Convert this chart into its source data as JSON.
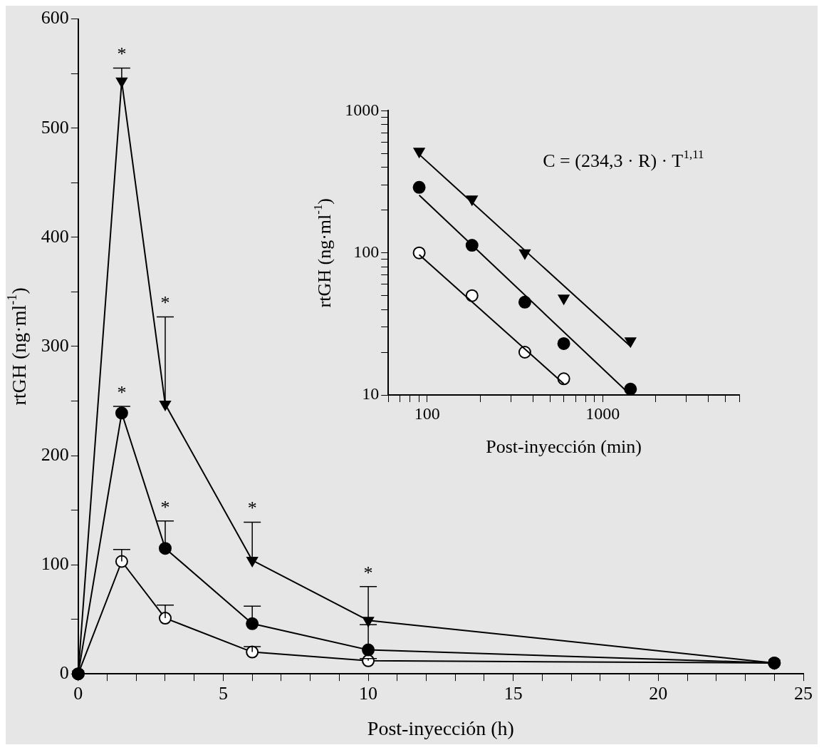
{
  "chart_data": [
    {
      "type": "line",
      "xlabel": "Post-inyección (h)",
      "ylabel": "rtGH (ng·ml$^{-1}$)",
      "xlim": [
        0,
        25
      ],
      "ylim": [
        0,
        600
      ],
      "xticks": [
        0,
        {
          "value": 1,
          "label": null
        },
        {
          "value": 2,
          "label": null
        },
        {
          "value": 3,
          "label": null
        },
        {
          "value": 4,
          "label": null
        },
        5,
        {
          "value": 6,
          "label": null
        },
        {
          "value": 7,
          "label": null
        },
        {
          "value": 8,
          "label": null
        },
        {
          "value": 9,
          "label": null
        },
        10,
        {
          "value": 11,
          "label": null
        },
        {
          "value": 12,
          "label": null
        },
        {
          "value": 13,
          "label": null
        },
        {
          "value": 14,
          "label": null
        },
        15,
        {
          "value": 16,
          "label": null
        },
        {
          "value": 17,
          "label": null
        },
        {
          "value": 18,
          "label": null
        },
        {
          "value": 19,
          "label": null
        },
        20,
        {
          "value": 21,
          "label": null
        },
        {
          "value": 22,
          "label": null
        },
        {
          "value": 23,
          "label": null
        },
        {
          "value": 24,
          "label": null
        },
        25
      ],
      "yticks": [
        0,
        {
          "value": 50,
          "label": null
        },
        100,
        {
          "value": 150,
          "label": null
        },
        200,
        {
          "value": 250,
          "label": null
        },
        300,
        {
          "value": 350,
          "label": null
        },
        400,
        {
          "value": 450,
          "label": null
        },
        500,
        {
          "value": 550,
          "label": null
        },
        600
      ],
      "grid": false,
      "legend": false,
      "series": [
        {
          "color": "#000000",
          "colors": [
            "#ffffff",
            "#ffffff",
            "#ffffff",
            "#ffffff",
            "#ffffff",
            "#ffffff"
          ],
          "marker": "circle",
          "x": [
            0,
            1.5,
            3,
            6,
            10,
            24
          ],
          "values": [
            0,
            103,
            51,
            20,
            12,
            10
          ],
          "errors": [
            null,
            [
              103,
              114
            ],
            [
              51,
              63
            ],
            [
              20,
              25
            ],
            [
              12,
              14
            ],
            null
          ]
        },
        {
          "color": "#000000",
          "marker": "circle",
          "x": [
            0,
            1.5,
            3,
            6,
            10,
            24
          ],
          "values": [
            0,
            239,
            115,
            46,
            22,
            10
          ],
          "errors": [
            null,
            [
              239,
              245
            ],
            [
              115,
              140
            ],
            [
              46,
              62
            ],
            [
              22,
              45
            ],
            null
          ]
        },
        {
          "color": "#000000",
          "marker": "triangle",
          "x": [
            0,
            1.5,
            3,
            6,
            10,
            24
          ],
          "values": [
            0,
            543,
            247,
            104,
            49,
            10
          ],
          "errors": [
            null,
            [
              543,
              555
            ],
            [
              247,
              327
            ],
            [
              104,
              139
            ],
            [
              49,
              80
            ],
            null
          ]
        }
      ],
      "annotations": [
        {
          "text": "*",
          "x": 1.5,
          "y": 555
        },
        {
          "text": "*",
          "x": 3,
          "y": 327
        },
        {
          "text": "*",
          "x": 6,
          "y": 139
        },
        {
          "text": "*",
          "x": 10,
          "y": 80
        },
        {
          "text": "*",
          "x": 1.5,
          "y": 245
        },
        {
          "text": "*",
          "x": 3,
          "y": 140
        }
      ]
    },
    {
      "type": "scatter",
      "xlabel": "Post-inyección (min)",
      "ylabel": "rtGH (ng·ml$^{-1}$)",
      "log": "xy",
      "xlim": [
        60,
        6000
      ],
      "ylim": [
        10,
        1000
      ],
      "xticks": [
        {
          "value": 60,
          "label": null
        },
        {
          "value": 70,
          "label": null
        },
        {
          "value": 80,
          "label": null
        },
        {
          "value": 90,
          "label": null
        },
        100,
        {
          "value": 200,
          "label": null
        },
        {
          "value": 300,
          "label": null
        },
        {
          "value": 400,
          "label": null
        },
        {
          "value": 500,
          "label": null
        },
        {
          "value": 600,
          "label": null
        },
        {
          "value": 700,
          "label": null
        },
        {
          "value": 800,
          "label": null
        },
        {
          "value": 900,
          "label": null
        },
        1000,
        {
          "value": 2000,
          "label": null
        },
        {
          "value": 3000,
          "label": null
        },
        {
          "value": 4000,
          "label": null
        },
        {
          "value": 5000,
          "label": null
        },
        {
          "value": 6000,
          "label": null
        }
      ],
      "yticks": [
        10,
        {
          "value": 20,
          "label": null
        },
        {
          "value": 30,
          "label": null
        },
        {
          "value": 40,
          "label": null
        },
        {
          "value": 50,
          "label": null
        },
        {
          "value": 60,
          "label": null
        },
        {
          "value": 70,
          "label": null
        },
        {
          "value": 80,
          "label": null
        },
        {
          "value": 90,
          "label": null
        },
        100,
        {
          "value": 200,
          "label": null
        },
        {
          "value": 300,
          "label": null
        },
        {
          "value": 400,
          "label": null
        },
        {
          "value": 500,
          "label": null
        },
        {
          "value": 600,
          "label": null
        },
        {
          "value": 700,
          "label": null
        },
        {
          "value": 800,
          "label": null
        },
        {
          "value": 900,
          "label": null
        },
        1000
      ],
      "grid": false,
      "legend": false,
      "series": [
        {
          "color": "#000000",
          "marker": "triangle",
          "x": [
            90,
            180,
            360,
            600,
            1440
          ],
          "values": [
            518,
            239,
            100,
            48,
            24
          ]
        },
        {
          "color": "#000000",
          "marker": "circle",
          "x": [
            90,
            180,
            360,
            600,
            1440
          ],
          "values": [
            289,
            113,
            45,
            23,
            11
          ]
        },
        {
          "color": "#000000",
          "colors": [
            "#ffffff",
            "#ffffff",
            "#ffffff",
            "#ffffff"
          ],
          "marker": "circle",
          "x": [
            90,
            180,
            360,
            600
          ],
          "values": [
            100,
            50,
            20,
            13
          ]
        },
        {
          "type": "line",
          "color": "#000000",
          "marker": "none",
          "x": [
            90,
            1440
          ],
          "values": [
            493,
            22
          ]
        },
        {
          "type": "line",
          "color": "#000000",
          "marker": "none",
          "x": [
            90,
            1440
          ],
          "values": [
            255,
            10
          ]
        },
        {
          "type": "line",
          "color": "#000000",
          "marker": "none",
          "x": [
            90,
            600
          ],
          "values": [
            97,
            12
          ]
        }
      ],
      "annotations": [
        "C = (234,3 · R) · T$^{1,11}$"
      ]
    }
  ]
}
